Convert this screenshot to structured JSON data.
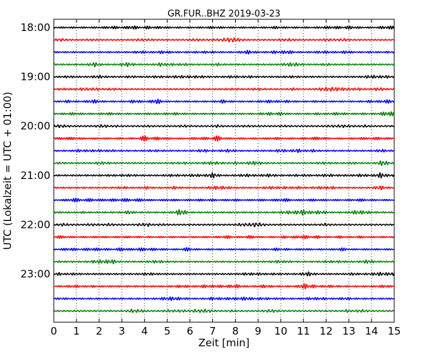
{
  "chart_data": {
    "type": "line",
    "title": "GR.FUR..BHZ 2019-03-23",
    "xlabel": "Zeit  [min]",
    "ylabel": "UTC (Lokalzeit = UTC + 01:00)",
    "xlim": [
      0,
      15
    ],
    "x_ticks": [
      "0",
      "1",
      "2",
      "3",
      "4",
      "5",
      "6",
      "7",
      "8",
      "9",
      "10",
      "11",
      "12",
      "13",
      "14",
      "15"
    ],
    "y_tick_labels": [
      "18:00",
      "19:00",
      "20:00",
      "21:00",
      "22:00",
      "23:00"
    ],
    "grid": "vertical dotted lines at each minute",
    "trace_colors": [
      "#000000",
      "#ff0000",
      "#0000ff",
      "#008000"
    ],
    "trace_row_start_times": [
      "18:00",
      "18:15",
      "18:30",
      "18:45",
      "19:00",
      "19:15",
      "19:30",
      "19:45",
      "20:00",
      "20:15",
      "20:30",
      "20:45",
      "21:00",
      "21:15",
      "21:30",
      "21:45",
      "22:00",
      "22:15",
      "22:30",
      "22:45",
      "23:00",
      "23:15",
      "23:30",
      "23:45"
    ],
    "notable_events": [
      {
        "row_start": "19:30",
        "x_min": 4.5,
        "note": "larger amplitude burst"
      },
      {
        "row_start": "20:15",
        "x_min": 4.0,
        "note": "larger amplitude burst"
      },
      {
        "row_start": "20:45",
        "x_min": 14.5,
        "note": "larger amplitude burst"
      },
      {
        "row_start": "21:00",
        "x_min": 14.4,
        "note": "larger amplitude burst"
      },
      {
        "row_start": "21:00",
        "x_min": 7.0,
        "note": "larger amplitude burst"
      },
      {
        "row_start": "21:45",
        "x_min": 5.6,
        "note": "larger amplitude burst"
      },
      {
        "row_start": "23:15",
        "x_min": 11.0,
        "note": "spike"
      }
    ]
  }
}
